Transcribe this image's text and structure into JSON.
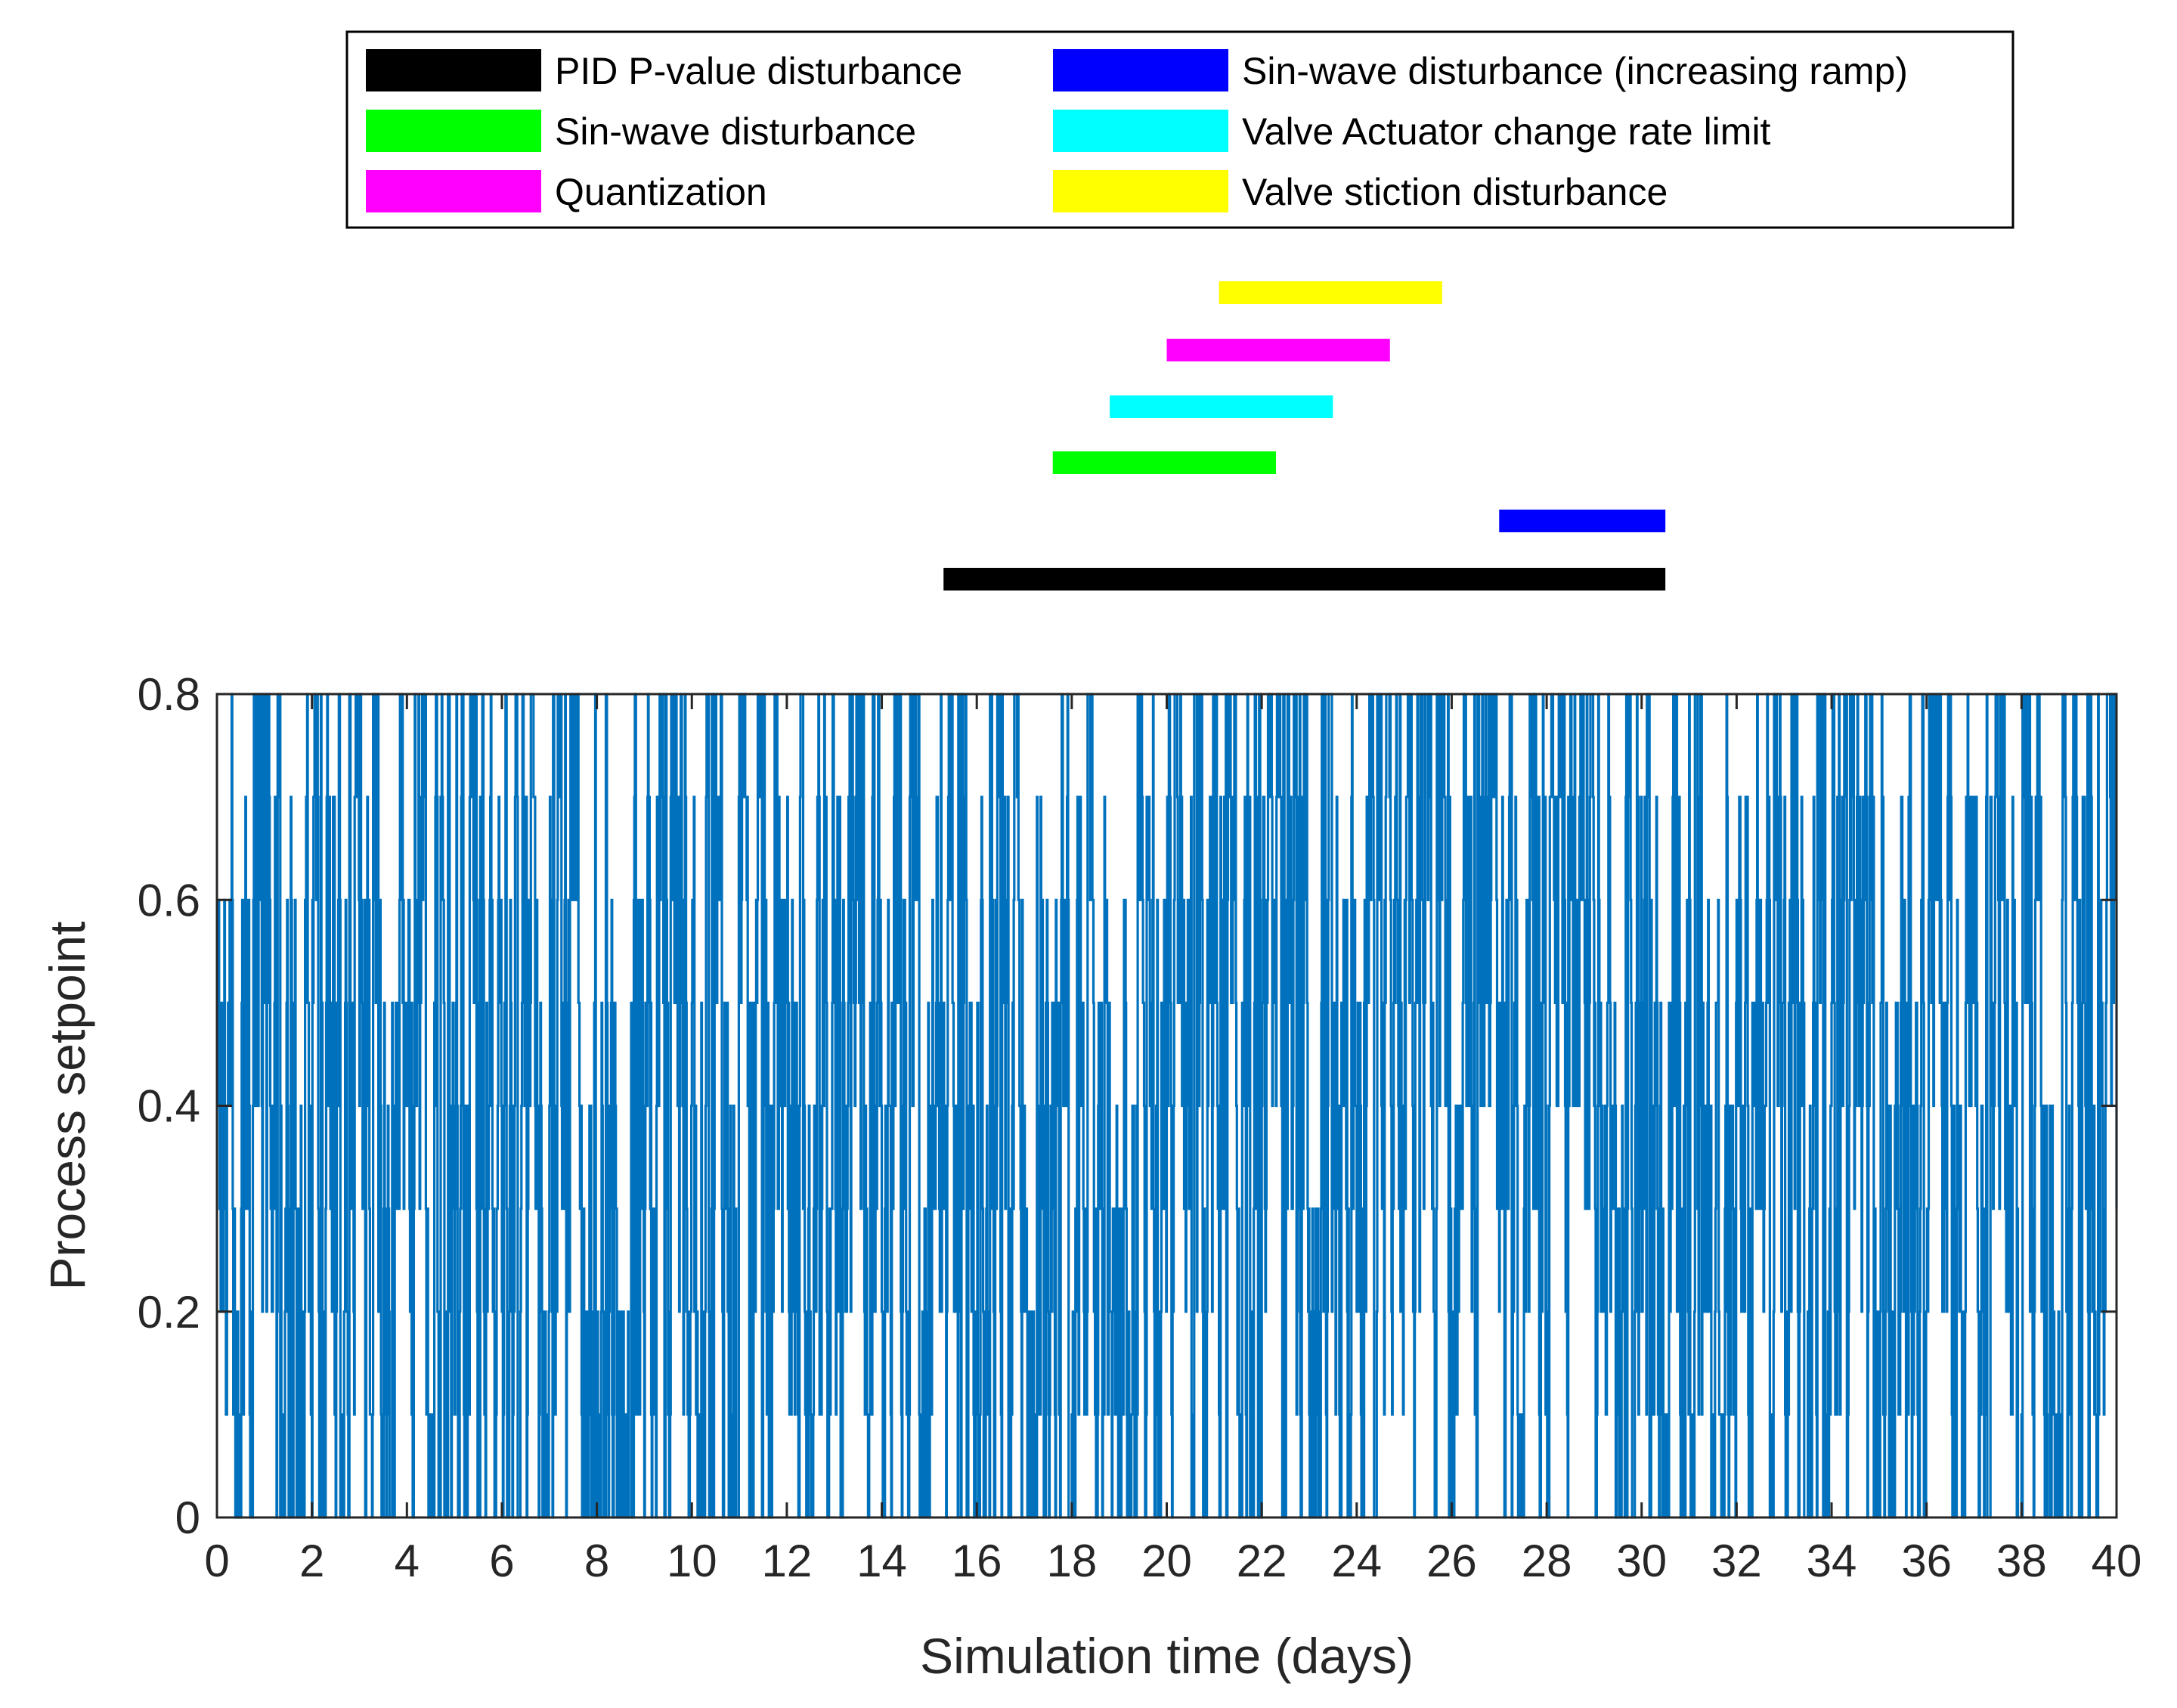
{
  "chart_data": {
    "type": "line",
    "xlabel": "Simulation time (days)",
    "ylabel": "Process setpoint",
    "xlim": [
      0,
      40
    ],
    "ylim": [
      0,
      0.8
    ],
    "xticks": [
      0,
      2,
      4,
      6,
      8,
      10,
      12,
      14,
      16,
      18,
      20,
      22,
      24,
      26,
      28,
      30,
      32,
      34,
      36,
      38,
      40
    ],
    "yticks": [
      0,
      0.2,
      0.4,
      0.6,
      0.8
    ],
    "ytick_labels": [
      "0",
      "0.2",
      "0.4",
      "0.6",
      "0.8"
    ],
    "grid": false,
    "series": [
      {
        "color": "#0072BD",
        "description_of_signal": "Random piecewise-constant setpoint between 0 and 0.8 in steps of 0.1, switching rapidly over 0-40 days",
        "level_set": [
          0,
          0.1,
          0.2,
          0.3,
          0.4,
          0.5,
          0.6,
          0.7,
          0.8
        ],
        "x_range": [
          0,
          40
        ]
      }
    ],
    "legend": {
      "placement": "top",
      "entries": [
        {
          "label": "PID P-value disturbance",
          "color": "#000000"
        },
        {
          "label": "Sin-wave disturbance",
          "color": "#00FF00"
        },
        {
          "label": "Quantization",
          "color": "#FF00FF"
        },
        {
          "label": "Sin-wave disturbance (increasing ramp)",
          "color": "#0000FF"
        },
        {
          "label": "Valve Actuator change rate limit",
          "color": "#00FFFF"
        },
        {
          "label": "Valve stiction disturbance",
          "color": "#FFFF00"
        }
      ]
    },
    "disturbance_intervals": [
      {
        "label": "PID P-value disturbance",
        "color": "#000000",
        "start": 15.3,
        "end": 30.5
      },
      {
        "label": "Sin-wave disturbance (increasing ramp)",
        "color": "#0000FF",
        "start": 27.0,
        "end": 30.5
      },
      {
        "label": "Sin-wave disturbance",
        "color": "#00FF00",
        "start": 17.6,
        "end": 22.3
      },
      {
        "label": "Valve Actuator change rate limit",
        "color": "#00FFFF",
        "start": 18.8,
        "end": 23.5
      },
      {
        "label": "Quantization",
        "color": "#FF00FF",
        "start": 20.0,
        "end": 24.7
      },
      {
        "label": "Valve stiction disturbance",
        "color": "#FFFF00",
        "start": 21.1,
        "end": 25.8
      }
    ]
  }
}
